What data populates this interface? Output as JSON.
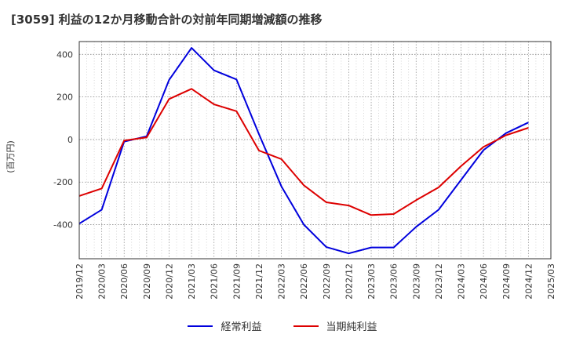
{
  "chart_data": {
    "type": "line",
    "title": "[3059]  利益の12か月移動合計の対前年同期増減額の推移",
    "ylabel": "(百万円)",
    "xlabel": "",
    "categories": [
      "2019/12",
      "2020/03",
      "2020/06",
      "2020/09",
      "2020/12",
      "2021/03",
      "2021/06",
      "2021/09",
      "2021/12",
      "2022/03",
      "2022/06",
      "2022/09",
      "2022/12",
      "2023/03",
      "2023/06",
      "2023/09",
      "2023/12",
      "2024/03",
      "2024/06",
      "2024/09",
      "2024/12",
      "2025/03"
    ],
    "ylim": [
      -560,
      460
    ],
    "yticks": [
      400,
      200,
      0,
      -200,
      -400
    ],
    "series": [
      {
        "name": "経常利益",
        "color": "#0000dd",
        "values": [
          -395,
          -330,
          -10,
          15,
          280,
          430,
          325,
          282,
          25,
          -220,
          -400,
          -505,
          -535,
          -507,
          -507,
          -410,
          -330,
          -190,
          -50,
          30,
          80,
          null
        ]
      },
      {
        "name": "当期純利益",
        "color": "#dd0000",
        "values": [
          -265,
          -230,
          -5,
          10,
          190,
          238,
          165,
          133,
          -52,
          -92,
          -215,
          -295,
          -310,
          -355,
          -350,
          -285,
          -225,
          -125,
          -35,
          20,
          55,
          null
        ]
      }
    ],
    "grid": true,
    "legend_position": "bottom-center"
  }
}
